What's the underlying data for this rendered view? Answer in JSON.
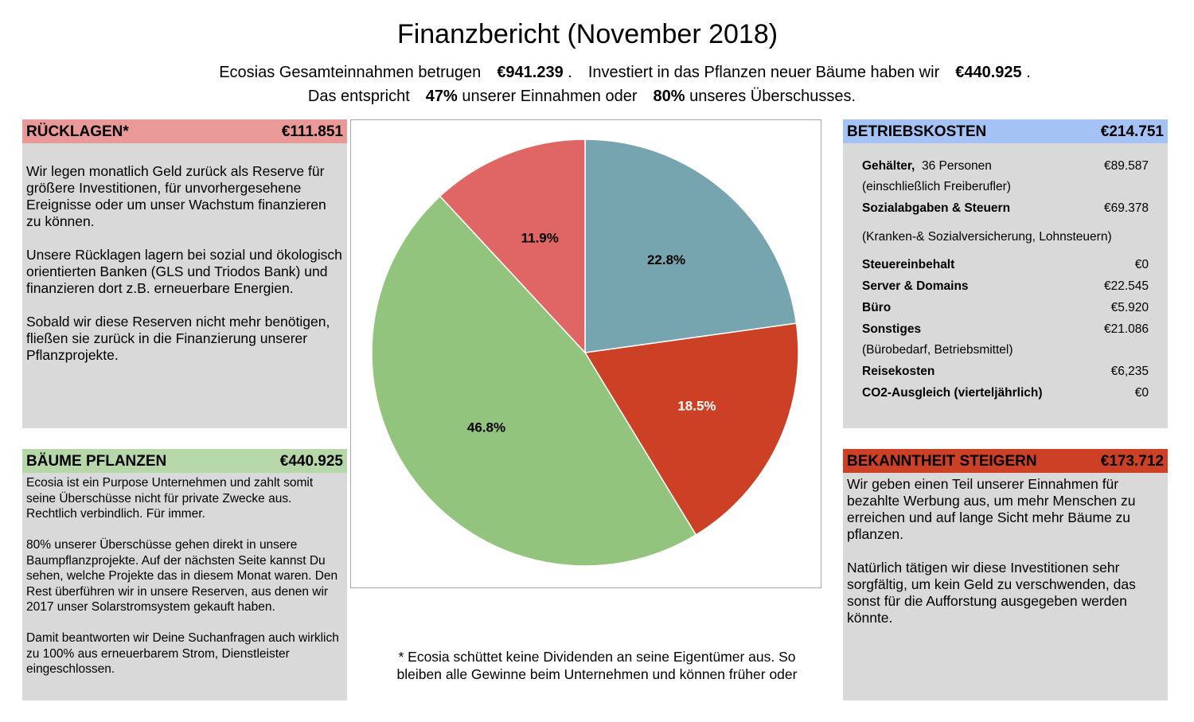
{
  "title": "Finanzbericht (November 2018)",
  "summary": {
    "l1_a": "Ecosias Gesamteinnahmen betrugen",
    "l1_b": "€941.239",
    "l1_c": ".",
    "l1_d": "Investiert in das Pflanzen neuer Bäume haben wir",
    "l1_e": "€440.925",
    "l1_f": ".",
    "l2_a": "Das entspricht",
    "l2_b": "47%",
    "l2_c": "unserer Einnahmen oder",
    "l2_d": "80%",
    "l2_e": "unseres Überschusses."
  },
  "colors": {
    "reserves": "#ea9999",
    "trees": "#b6d7a8",
    "operating": "#a4c2f4",
    "awareness": "#cc4125",
    "slice_blue": "#76a5af",
    "slice_red": "#cc4125",
    "slice_green": "#93c47d",
    "slice_pink": "#e06666"
  },
  "reserves": {
    "label": "RÜCKLAGEN*",
    "amount": "€111.851",
    "p1": "Wir legen monatlich Geld zurück als Reserve für größere Investitionen, für unvorhergesehene Ereignisse oder um unser Wachstum finanzieren zu können.",
    "p2": "Unsere Rücklagen lagern bei sozial und ökologisch orientierten Banken (GLS und Triodos Bank) und finanzieren dort z.B. erneuerbare Energien.",
    "p3": "Sobald wir diese Reserven nicht mehr benötigen, fließen sie zurück in die Finanzierung unserer Pflanzprojekte."
  },
  "trees": {
    "label": "BÄUME PFLANZEN",
    "amount": "€440.925",
    "p1": "Ecosia ist ein Purpose Unternehmen und zahlt somit seine Überschüsse nicht für private Zwecke aus. Rechtlich verbindlich. Für immer.",
    "p2": "80% unserer Überschüsse gehen direkt in unsere Baumpflanzprojekte. Auf der nächsten Seite kannst Du sehen, welche Projekte das in diesem Monat waren. Den Rest überführen wir in unsere Reserven, aus denen wir 2017 unser Solarstromsystem gekauft haben.",
    "p3": "Damit beantworten wir Deine Suchanfragen auch wirklich zu 100% aus erneuerbarem Strom, Dienstleister eingeschlossen."
  },
  "operating": {
    "label": "BETRIEBSKOSTEN",
    "amount": "€214.751",
    "salaries_label": "Gehälter,",
    "salaries_people": "36  Personen",
    "salaries_value": "€89.587",
    "salaries_note": "(einschließlich Freiberufler)",
    "social_label": "Sozialabgaben & Steuern",
    "social_value": "€69.378",
    "social_note": "(Kranken-& Sozialversicherung, Lohnsteuern)",
    "withholding_label": "Steuereinbehalt",
    "withholding_value": "€0",
    "server_label": "Server & Domains",
    "server_value": "€22.545",
    "office_label": "Büro",
    "office_value": "€5.920",
    "other_label": "Sonstiges",
    "other_value": "€21.086",
    "other_note": "(Bürobedarf, Betriebsmittel)",
    "travel_label": "Reisekosten",
    "travel_value": "€6,235",
    "co2_label": "CO2-Ausgleich (vierteljährlich)",
    "co2_value": "€0"
  },
  "awareness": {
    "label": "BEKANNTHEIT STEIGERN",
    "amount": "€173.712",
    "p1": "Wir geben einen Teil unserer Einnahmen für bezahlte Werbung aus, um mehr Menschen zu erreichen und auf lange Sicht mehr Bäume zu pflanzen.",
    "p2": "Natürlich tätigen wir diese Investitionen sehr sorgfältig, um kein Geld zu verschwenden, das sonst für die Aufforstung ausgegeben werden könnte."
  },
  "footnote": "* Ecosia schüttet keine Dividenden an seine Eigentümer aus. So bleiben alle Gewinne beim Unternehmen und können früher oder",
  "chart_data": {
    "type": "pie",
    "title": "",
    "categories": [
      "Betriebskosten",
      "Bekanntheit steigern",
      "Bäume pflanzen",
      "Rücklagen"
    ],
    "values": [
      22.8,
      18.5,
      46.8,
      11.9
    ],
    "labels": [
      "22.8%",
      "18.5%",
      "46.8%",
      "11.9%"
    ],
    "colors": [
      "#76a5af",
      "#cc4125",
      "#93c47d",
      "#e06666"
    ],
    "label_colors": [
      "#000000",
      "#ffffff",
      "#000000",
      "#000000"
    ],
    "start": "12 o'clock, clockwise"
  }
}
